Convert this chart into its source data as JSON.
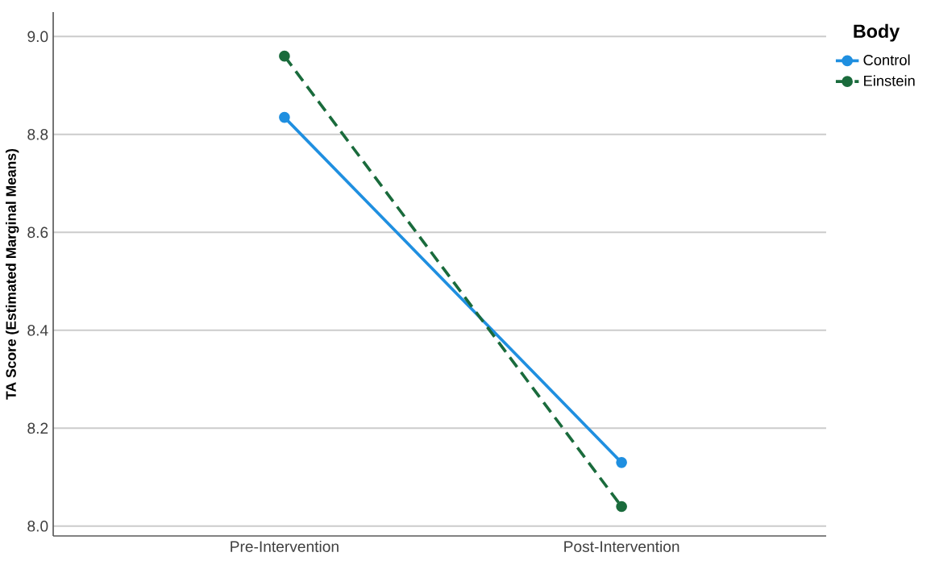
{
  "chart_data": {
    "type": "line",
    "ylabel": "TA Score (Estimated Marginal Means)",
    "legend_title": "Body",
    "categories": [
      "Pre-Intervention",
      "Post-Intervention"
    ],
    "series": [
      {
        "name": "Control",
        "color": "#1f8fe0",
        "values": [
          8.835,
          8.13
        ],
        "line_style": "solid"
      },
      {
        "name": "Einstein",
        "color": "#1a6b3c",
        "values": [
          8.96,
          8.04
        ],
        "line_style": "dashed"
      }
    ],
    "ylim": [
      7.98,
      9.05
    ],
    "yticks": [
      {
        "value": 8.0,
        "label": "8.0"
      },
      {
        "value": 8.2,
        "label": "8.2"
      },
      {
        "value": 8.4,
        "label": "8.4"
      },
      {
        "value": 8.6,
        "label": "8.6"
      },
      {
        "value": 8.8,
        "label": "8.8"
      },
      {
        "value": 9.0,
        "label": "9.0"
      }
    ],
    "grid": "y",
    "legend": "top right",
    "marker": "circle"
  }
}
